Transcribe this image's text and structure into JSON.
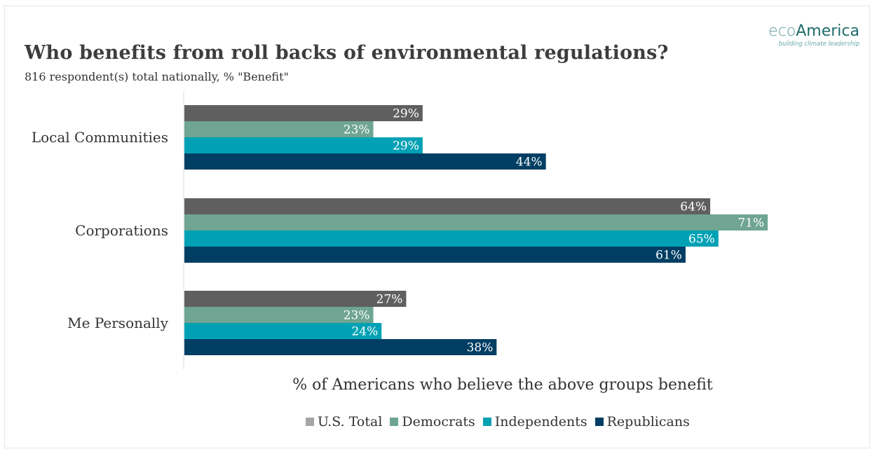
{
  "header": {
    "title": "Who benefits from roll backs of environmental regulations?",
    "subtitle": "816 respondent(s) total nationally, % \"Benefit\""
  },
  "logo": {
    "brand_part1": "eco",
    "brand_part2": "America",
    "tagline": "building climate leadership"
  },
  "chart_data": {
    "type": "bar",
    "orientation": "horizontal",
    "title": "Who benefits from roll backs of environmental regulations?",
    "subtitle": "816 respondent(s) total nationally, % \"Benefit\"",
    "xlabel": "% of Americans who believe the above groups benefit",
    "ylabel": "",
    "categories": [
      "Local Communities",
      "Corporations",
      "Me Personally"
    ],
    "series": [
      {
        "name": "U.S. Total",
        "color": "#5f5f5f",
        "values": [
          29,
          64,
          27
        ]
      },
      {
        "name": "Democrats",
        "color": "#6fa592",
        "values": [
          23,
          71,
          23
        ]
      },
      {
        "name": "Independents",
        "color": "#00a1b4",
        "values": [
          29,
          65,
          24
        ]
      },
      {
        "name": "Republicans",
        "color": "#003e63",
        "values": [
          44,
          61,
          38
        ]
      }
    ],
    "value_suffix": "%",
    "xlim": [
      0,
      71
    ],
    "grid": false,
    "legend_position": "bottom"
  }
}
